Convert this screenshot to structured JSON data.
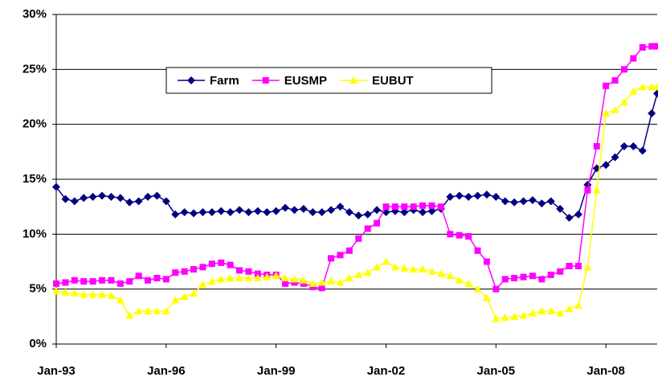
{
  "chart_data": {
    "type": "line",
    "x": [
      1993,
      1993.25,
      1993.5,
      1993.75,
      1994,
      1994.25,
      1994.5,
      1994.75,
      1995,
      1995.25,
      1995.5,
      1995.75,
      1996,
      1996.25,
      1996.5,
      1996.75,
      1997,
      1997.25,
      1997.5,
      1997.75,
      1998,
      1998.25,
      1998.5,
      1998.75,
      1999,
      1999.25,
      1999.5,
      1999.75,
      2000,
      2000.25,
      2000.5,
      2000.75,
      2001,
      2001.25,
      2001.5,
      2001.75,
      2002,
      2002.25,
      2002.5,
      2002.75,
      2003,
      2003.25,
      2003.5,
      2003.75,
      2004,
      2004.25,
      2004.5,
      2004.75,
      2005,
      2005.25,
      2005.5,
      2005.75,
      2006,
      2006.25,
      2006.5,
      2006.75,
      2007,
      2007.25,
      2007.5,
      2007.75,
      2008,
      2008.25,
      2008.5,
      2008.75,
      2009,
      2009.25,
      2009.4
    ],
    "series": [
      {
        "name": "Farm",
        "color": "#000080",
        "marker": "diamond",
        "values": [
          14.3,
          13.2,
          13.0,
          13.3,
          13.4,
          13.5,
          13.4,
          13.3,
          12.9,
          13.0,
          13.4,
          13.5,
          13.0,
          11.8,
          12.0,
          11.9,
          12.0,
          12.0,
          12.1,
          12.0,
          12.2,
          12.0,
          12.1,
          12.0,
          12.1,
          12.4,
          12.2,
          12.3,
          12.0,
          12.0,
          12.2,
          12.5,
          12.0,
          11.7,
          11.8,
          12.2,
          12.0,
          12.1,
          12.0,
          12.2,
          12.0,
          12.1,
          12.3,
          13.4,
          13.5,
          13.4,
          13.5,
          13.6,
          13.4,
          13.0,
          12.9,
          13.0,
          13.1,
          12.8,
          13.0,
          12.3,
          11.5,
          11.8,
          14.5,
          16.0,
          16.3,
          17.0,
          18.0,
          18.0,
          17.6,
          21.0,
          22.8
        ]
      },
      {
        "name": "EUSMP",
        "color": "#ff00ff",
        "marker": "square",
        "values": [
          5.5,
          5.6,
          5.8,
          5.7,
          5.7,
          5.8,
          5.8,
          5.5,
          5.7,
          6.2,
          5.8,
          6.0,
          5.9,
          6.5,
          6.6,
          6.8,
          7.0,
          7.3,
          7.4,
          7.2,
          6.7,
          6.6,
          6.4,
          6.3,
          6.3,
          5.5,
          5.6,
          5.5,
          5.2,
          5.1,
          7.8,
          8.1,
          8.5,
          9.6,
          10.5,
          11.0,
          12.5,
          12.5,
          12.5,
          12.5,
          12.6,
          12.6,
          12.5,
          10.0,
          9.9,
          9.8,
          8.5,
          7.5,
          5.0,
          5.9,
          6.0,
          6.1,
          6.2,
          5.9,
          6.3,
          6.6,
          7.1,
          7.1,
          14.0,
          18.0,
          23.5,
          24.0,
          25.0,
          26.0,
          27.0,
          27.1,
          27.1
        ]
      },
      {
        "name": "EUBUT",
        "color": "#ffff00",
        "marker": "triangle",
        "values": [
          4.8,
          4.7,
          4.6,
          4.5,
          4.5,
          4.5,
          4.4,
          4.0,
          2.6,
          3.0,
          3.0,
          3.0,
          3.0,
          4.0,
          4.3,
          4.6,
          5.4,
          5.7,
          5.9,
          6.0,
          6.0,
          6.0,
          6.0,
          6.1,
          6.2,
          6.0,
          5.9,
          5.8,
          5.5,
          5.6,
          5.7,
          5.6,
          6.0,
          6.3,
          6.5,
          7.0,
          7.5,
          7.0,
          6.9,
          6.8,
          6.8,
          6.6,
          6.4,
          6.2,
          5.8,
          5.5,
          5.0,
          4.2,
          2.3,
          2.4,
          2.5,
          2.6,
          2.8,
          3.0,
          3.0,
          2.8,
          3.2,
          3.5,
          7.0,
          14.0,
          21.0,
          21.3,
          22.0,
          23.0,
          23.4,
          23.4,
          23.4
        ]
      }
    ],
    "xlim": [
      1993,
      2009.4
    ],
    "xticks": [
      {
        "value": 1993,
        "label": "Jan-93"
      },
      {
        "value": 1996,
        "label": "Jan-96"
      },
      {
        "value": 1999,
        "label": "Jan-99"
      },
      {
        "value": 2002,
        "label": "Jan-02"
      },
      {
        "value": 2005,
        "label": "Jan-05"
      },
      {
        "value": 2008,
        "label": "Jan-08"
      }
    ],
    "ylim": [
      0,
      30
    ],
    "yticks": [
      {
        "value": 0,
        "label": "0%"
      },
      {
        "value": 5,
        "label": "5%"
      },
      {
        "value": 10,
        "label": "10%"
      },
      {
        "value": 15,
        "label": "15%"
      },
      {
        "value": 20,
        "label": "20%"
      },
      {
        "value": 25,
        "label": "25%"
      },
      {
        "value": 30,
        "label": "30%"
      }
    ],
    "grid": true,
    "legend": "upper center"
  }
}
